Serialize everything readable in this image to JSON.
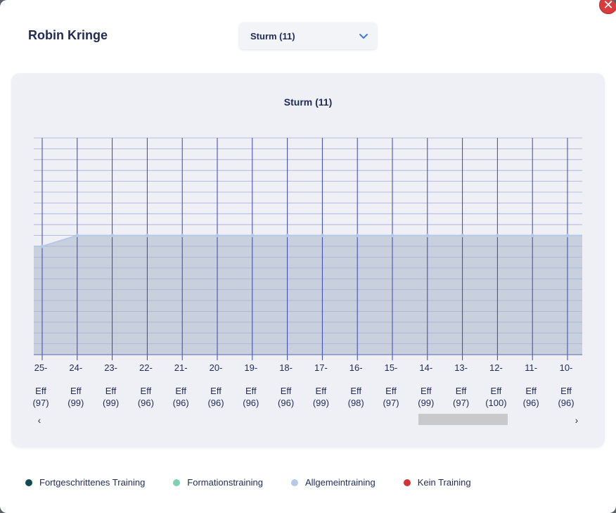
{
  "modal": {
    "player_name": "Robin Kringe",
    "close_symbol": "✕",
    "dropdown": {
      "selected": "Sturm (11)"
    }
  },
  "chart_data": {
    "type": "area",
    "title": "Sturm (11)",
    "ylim": [
      0,
      20
    ],
    "grid": true,
    "categories": [
      "25-",
      "24-",
      "23-",
      "22-",
      "21-",
      "20-",
      "19-",
      "18-",
      "17-",
      "16-",
      "15-",
      "14-",
      "13-",
      "12-",
      "11-",
      "10-"
    ],
    "sublabels": [
      "Eff",
      "Eff",
      "Eff",
      "Eff",
      "Eff",
      "Eff",
      "Eff",
      "Eff",
      "Eff",
      "Eff",
      "Eff",
      "Eff",
      "Eff",
      "Eff",
      "Eff",
      "Eff"
    ],
    "efficiency": [
      "(97)",
      "(99)",
      "(99)",
      "(96)",
      "(96)",
      "(96)",
      "(96)",
      "(96)",
      "(99)",
      "(98)",
      "(97)",
      "(99)",
      "(97)",
      "(100)",
      "(96)",
      "(96)"
    ],
    "series": [
      {
        "color": "#b4c8e8",
        "values": [
          10,
          11,
          11,
          11,
          11,
          11,
          11,
          11,
          11,
          11,
          11,
          11,
          11,
          11,
          11,
          11
        ]
      }
    ],
    "scroll_position": 0.71,
    "scroll_visible_fraction": 0.17
  },
  "legend": [
    {
      "label": "Fortgeschrittenes Training",
      "color": "#0e4a4f",
      "icon": "dot-icon"
    },
    {
      "label": "Formationstraining",
      "color": "#7fd1b0",
      "icon": "dot-icon"
    },
    {
      "label": "Allgemeintraining",
      "color": "#b4c8e8",
      "icon": "dot-icon"
    },
    {
      "label": "Kein Training",
      "color": "#d13434",
      "icon": "dot-icon"
    }
  ]
}
